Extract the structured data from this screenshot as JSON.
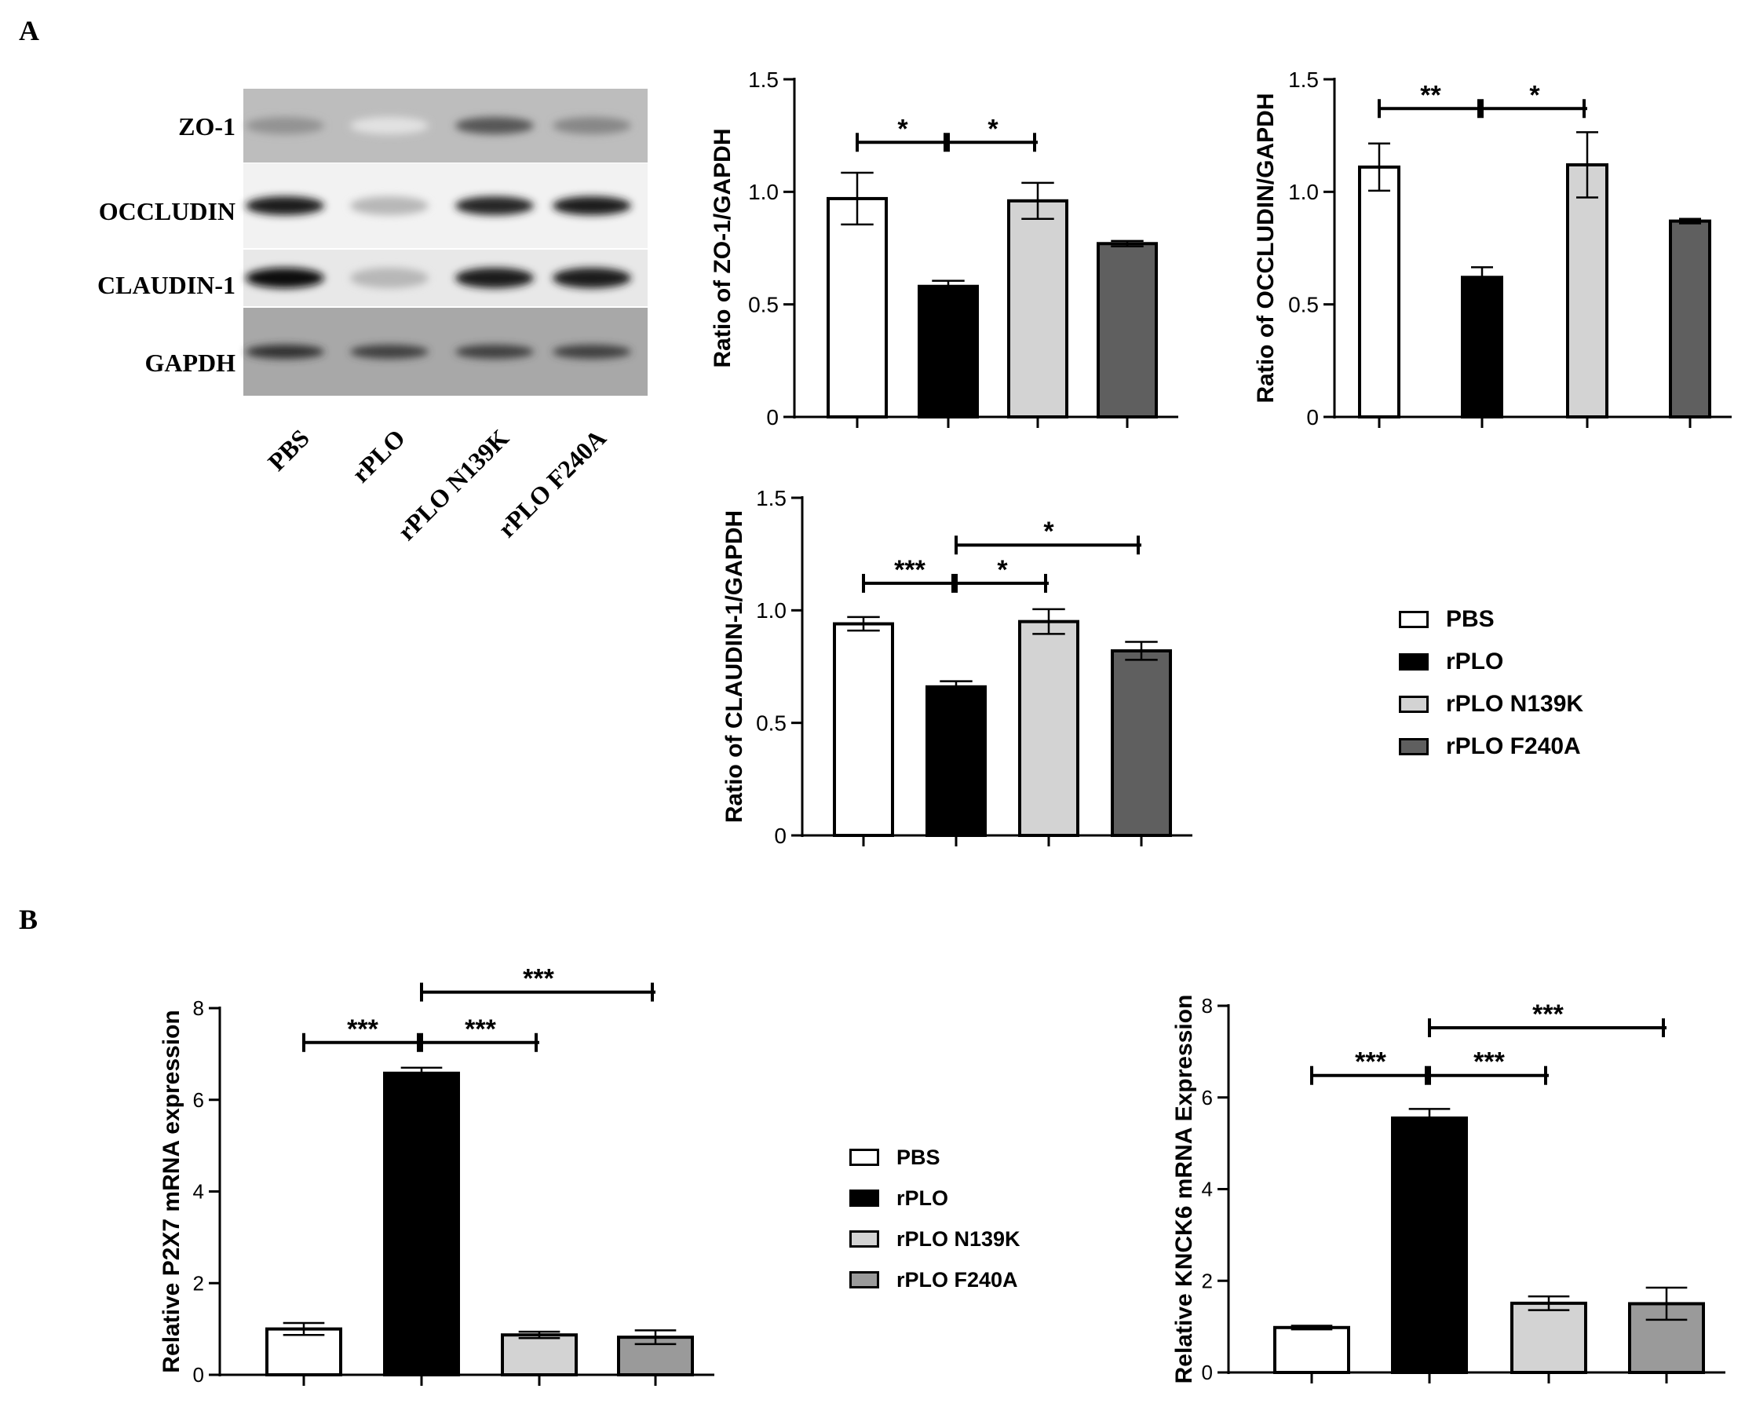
{
  "panels": {
    "a_label": "A",
    "b_label": "B"
  },
  "blot": {
    "bands": [
      {
        "label": "ZO-1",
        "intensities": [
          0.45,
          0.12,
          0.7,
          0.5
        ]
      },
      {
        "label": "OCCLUDIN",
        "intensities": [
          0.95,
          0.3,
          0.9,
          0.95
        ]
      },
      {
        "label": "CLAUDIN-1",
        "intensities": [
          1.0,
          0.3,
          0.95,
          0.95
        ]
      },
      {
        "label": "GAPDH",
        "intensities": [
          0.85,
          0.8,
          0.8,
          0.8
        ]
      }
    ],
    "lanes": [
      "PBS",
      "rPLO",
      "rPLO N139K",
      "rPLO F240A"
    ]
  },
  "legend_a": [
    {
      "label": "PBS",
      "color": "#ffffff"
    },
    {
      "label": "rPLO",
      "color": "#000000"
    },
    {
      "label": "rPLO N139K",
      "color": "#d3d3d3"
    },
    {
      "label": "rPLO F240A",
      "color": "#5f5f5f"
    }
  ],
  "legend_b": [
    {
      "label": "PBS",
      "color": "#ffffff"
    },
    {
      "label": "rPLO",
      "color": "#000000"
    },
    {
      "label": "rPLO N139K",
      "color": "#d3d3d3"
    },
    {
      "label": "rPLO F240A",
      "color": "#9a9a9a"
    }
  ],
  "chart_data": [
    {
      "id": "zo1",
      "type": "bar",
      "ylabel": "Ratio of ZO-1/GAPDH",
      "ylim": [
        0,
        1.5
      ],
      "yticks": [
        "0",
        "0.5",
        "1.0",
        "1.5"
      ],
      "categories": [
        "PBS",
        "rPLO",
        "rPLO N139K",
        "rPLO F240A"
      ],
      "values": [
        0.97,
        0.58,
        0.96,
        0.77
      ],
      "errors": [
        0.115,
        0.025,
        0.08,
        0.012
      ],
      "colors": [
        "#ffffff",
        "#000000",
        "#d3d3d3",
        "#5f5f5f"
      ],
      "significance": [
        {
          "from": 0,
          "to": 1,
          "label": "*",
          "level": 1.22
        },
        {
          "from": 1,
          "to": 2,
          "label": "*",
          "level": 1.22
        }
      ]
    },
    {
      "id": "occludin",
      "type": "bar",
      "ylabel": "Ratio of OCCLUDIN/GAPDH",
      "ylim": [
        0,
        1.5
      ],
      "yticks": [
        "0",
        "0.5",
        "1.0",
        "1.5"
      ],
      "categories": [
        "PBS",
        "rPLO",
        "rPLO N139K",
        "rPLO F240A"
      ],
      "values": [
        1.11,
        0.62,
        1.12,
        0.87
      ],
      "errors": [
        0.105,
        0.045,
        0.145,
        0.01
      ],
      "colors": [
        "#ffffff",
        "#000000",
        "#d3d3d3",
        "#5f5f5f"
      ],
      "significance": [
        {
          "from": 0,
          "to": 1,
          "label": "**",
          "level": 1.37
        },
        {
          "from": 1,
          "to": 2,
          "label": "*",
          "level": 1.37
        }
      ]
    },
    {
      "id": "claudin",
      "type": "bar",
      "ylabel": "Ratio of CLAUDIN-1/GAPDH",
      "ylim": [
        0,
        1.5
      ],
      "yticks": [
        "0",
        "0.5",
        "1.0",
        "1.5"
      ],
      "categories": [
        "PBS",
        "rPLO",
        "rPLO N139K",
        "rPLO F240A"
      ],
      "values": [
        0.94,
        0.66,
        0.95,
        0.82
      ],
      "errors": [
        0.03,
        0.025,
        0.055,
        0.04
      ],
      "colors": [
        "#ffffff",
        "#000000",
        "#d3d3d3",
        "#5f5f5f"
      ],
      "significance": [
        {
          "from": 0,
          "to": 1,
          "label": "***",
          "level": 1.12
        },
        {
          "from": 1,
          "to": 2,
          "label": "*",
          "level": 1.12
        },
        {
          "from": 1,
          "to": 3,
          "label": "*",
          "level": 1.29
        }
      ]
    },
    {
      "id": "p2x7",
      "type": "bar",
      "ylabel": "Relative P2X7 mRNA expression",
      "ylim": [
        0,
        8
      ],
      "yticks": [
        "0",
        "2",
        "4",
        "6",
        "8"
      ],
      "categories": [
        "PBS",
        "rPLO",
        "rPLO N139K",
        "rPLO F240A"
      ],
      "values": [
        1.0,
        6.58,
        0.87,
        0.82
      ],
      "errors": [
        0.13,
        0.12,
        0.07,
        0.15
      ],
      "colors": [
        "#ffffff",
        "#000000",
        "#d3d3d3",
        "#9a9a9a"
      ],
      "significance": [
        {
          "from": 0,
          "to": 1,
          "label": "***",
          "level": 7.25
        },
        {
          "from": 1,
          "to": 2,
          "label": "***",
          "level": 7.25
        },
        {
          "from": 1,
          "to": 3,
          "label": "***",
          "level": 8.35
        }
      ]
    },
    {
      "id": "kcnk6",
      "type": "bar",
      "ylabel": "Relative KNCK6 mRNA Expression",
      "ylim": [
        0,
        8
      ],
      "yticks": [
        "0",
        "2",
        "4",
        "6",
        "8"
      ],
      "categories": [
        "PBS",
        "rPLO",
        "rPLO N139K",
        "rPLO F240A"
      ],
      "values": [
        0.98,
        5.55,
        1.51,
        1.5
      ],
      "errors": [
        0.04,
        0.2,
        0.15,
        0.35
      ],
      "colors": [
        "#ffffff",
        "#000000",
        "#d3d3d3",
        "#9a9a9a"
      ],
      "significance": [
        {
          "from": 0,
          "to": 1,
          "label": "***",
          "level": 6.48
        },
        {
          "from": 1,
          "to": 2,
          "label": "***",
          "level": 6.48
        },
        {
          "from": 1,
          "to": 3,
          "label": "***",
          "level": 7.52
        }
      ]
    }
  ]
}
